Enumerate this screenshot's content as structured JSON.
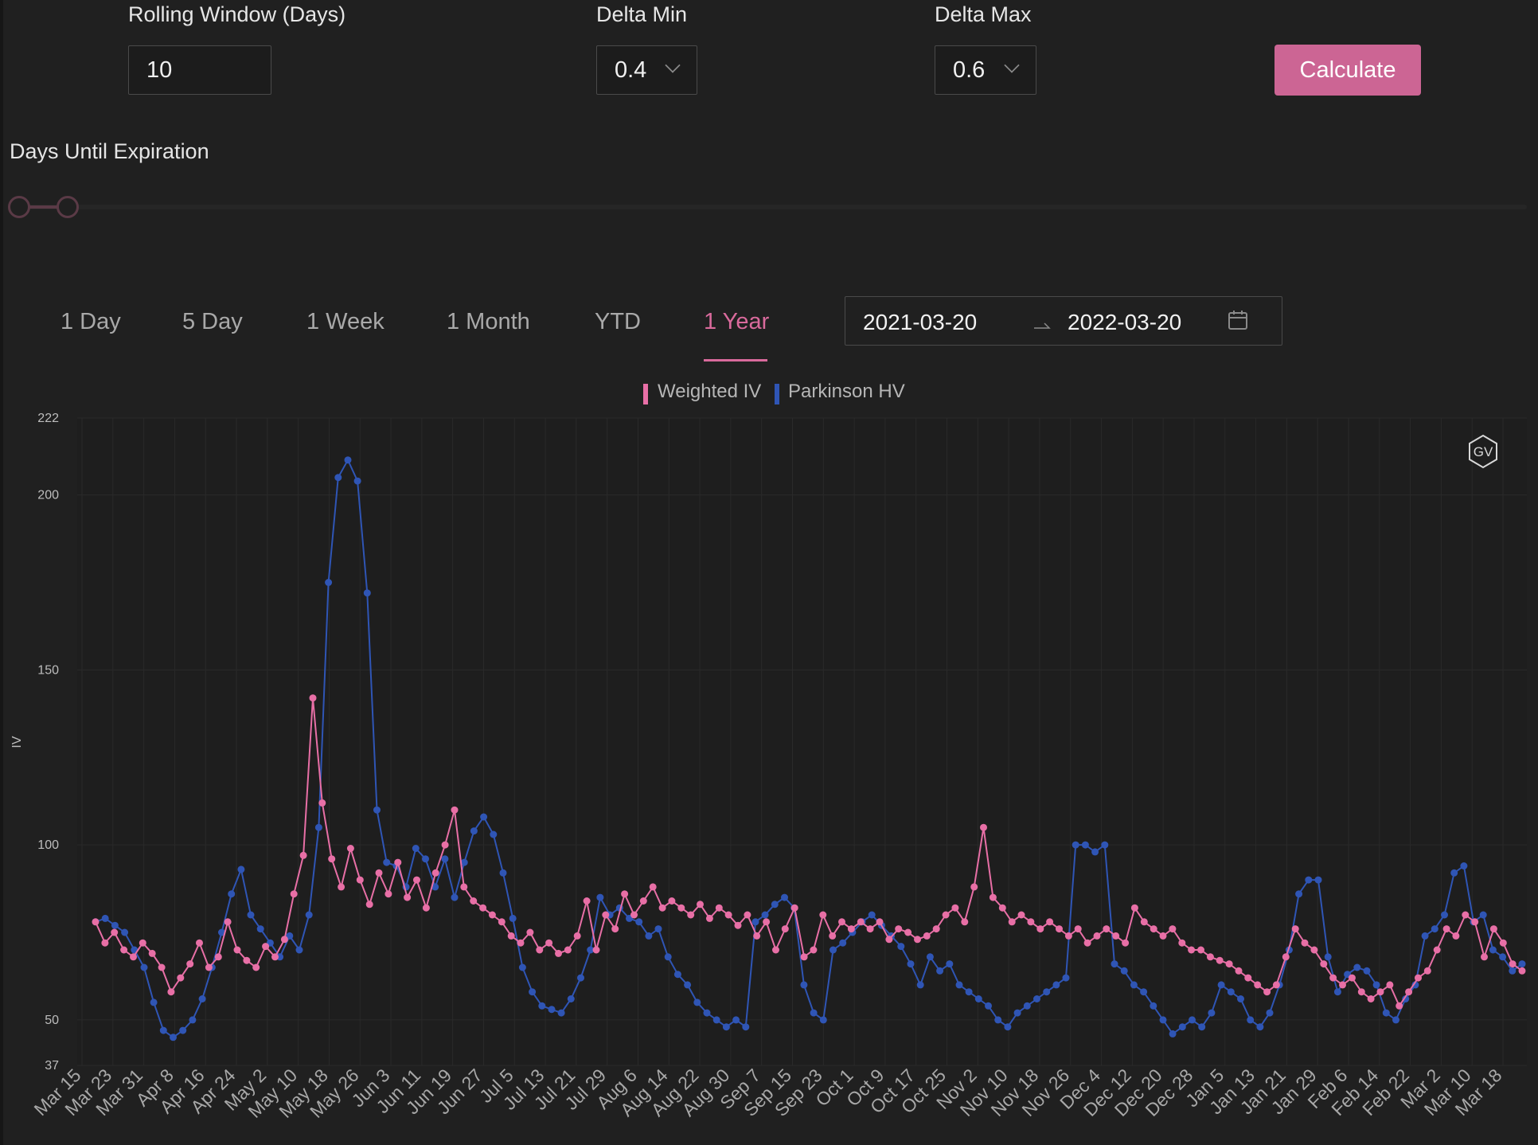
{
  "controls": {
    "rolling_window": {
      "label": "Rolling Window (Days)",
      "value": "10"
    },
    "delta_min": {
      "label": "Delta Min",
      "value": "0.4"
    },
    "delta_max": {
      "label": "Delta Max",
      "value": "0.6"
    },
    "calculate_label": "Calculate",
    "days_until_expiration_label": "Days Until Expiration"
  },
  "range_tabs": [
    {
      "label": "1 Day",
      "active": false
    },
    {
      "label": "5 Day",
      "active": false
    },
    {
      "label": "1 Week",
      "active": false
    },
    {
      "label": "1 Month",
      "active": false
    },
    {
      "label": "YTD",
      "active": false
    },
    {
      "label": "1 Year",
      "active": true
    }
  ],
  "date_range": {
    "start": "2021-03-20",
    "end": "2022-03-20"
  },
  "badge_text": "GV",
  "colors": {
    "accent": "#cc6594",
    "weighted_iv": "#e86fa6",
    "parkinson_hv": "#2f55b5",
    "background": "#202020"
  },
  "chart_data": {
    "type": "line",
    "ylabel": "IV",
    "xlabel": "",
    "ylim": [
      37,
      222
    ],
    "y_ticks": [
      37,
      50,
      100,
      150,
      200,
      222
    ],
    "x_tick_labels": [
      "Mar 15",
      "Mar 23",
      "Mar 31",
      "Apr 8",
      "Apr 16",
      "Apr 24",
      "May 2",
      "May 10",
      "May 18",
      "May 26",
      "Jun 3",
      "Jun 11",
      "Jun 19",
      "Jun 27",
      "Jul 5",
      "Jul 13",
      "Jul 21",
      "Jul 29",
      "Aug 6",
      "Aug 14",
      "Aug 22",
      "Aug 30",
      "Sep 7",
      "Sep 15",
      "Sep 23",
      "Oct 1",
      "Oct 9",
      "Oct 17",
      "Oct 25",
      "Nov 2",
      "Nov 10",
      "Nov 18",
      "Nov 26",
      "Dec 4",
      "Dec 12",
      "Dec 20",
      "Dec 28",
      "Jan 5",
      "Jan 13",
      "Jan 21",
      "Jan 29",
      "Feb 6",
      "Feb 14",
      "Feb 22",
      "Mar 2",
      "Mar 10",
      "Mar 18"
    ],
    "legend_position": "top-center",
    "grid": true,
    "series": [
      {
        "name": "Weighted IV",
        "color": "#e86fa6",
        "values": [
          78,
          72,
          75,
          70,
          68,
          72,
          69,
          65,
          58,
          62,
          66,
          72,
          65,
          68,
          78,
          70,
          67,
          65,
          71,
          68,
          73,
          86,
          97,
          142,
          112,
          96,
          88,
          99,
          90,
          83,
          92,
          86,
          95,
          85,
          90,
          82,
          92,
          100,
          110,
          88,
          84,
          82,
          80,
          78,
          74,
          72,
          75,
          70,
          72,
          69,
          70,
          74,
          84,
          70,
          80,
          76,
          86,
          80,
          84,
          88,
          82,
          84,
          82,
          80,
          83,
          79,
          82,
          80,
          77,
          80,
          74,
          78,
          70,
          76,
          82,
          68,
          70,
          80,
          74,
          78,
          76,
          78,
          76,
          78,
          73,
          76,
          75,
          73,
          74,
          76,
          80,
          82,
          78,
          88,
          105,
          85,
          82,
          78,
          80,
          78,
          76,
          78,
          76,
          74,
          76,
          72,
          74,
          76,
          74,
          72,
          82,
          78,
          76,
          74,
          76,
          72,
          70,
          70,
          68,
          67,
          66,
          64,
          62,
          60,
          58,
          60,
          68,
          76,
          72,
          70,
          66,
          62,
          60,
          62,
          58,
          56,
          58,
          60,
          54,
          58,
          62,
          64,
          70,
          76,
          74,
          80,
          78,
          68,
          76,
          72,
          66,
          64
        ]
      },
      {
        "name": "Parkinson HV",
        "color": "#2f55b5",
        "values": [
          78,
          79,
          77,
          75,
          70,
          65,
          55,
          47,
          45,
          47,
          50,
          56,
          65,
          75,
          86,
          93,
          80,
          76,
          72,
          68,
          74,
          70,
          80,
          105,
          175,
          205,
          210,
          204,
          172,
          110,
          95,
          94,
          88,
          99,
          96,
          88,
          96,
          85,
          95,
          104,
          108,
          103,
          92,
          79,
          65,
          58,
          54,
          53,
          52,
          56,
          62,
          70,
          85,
          80,
          82,
          79,
          78,
          74,
          76,
          68,
          63,
          60,
          55,
          52,
          50,
          48,
          50,
          48,
          78,
          80,
          83,
          85,
          82,
          60,
          52,
          50,
          70,
          72,
          75,
          78,
          80,
          77,
          74,
          71,
          66,
          60,
          68,
          64,
          66,
          60,
          58,
          56,
          54,
          50,
          48,
          52,
          54,
          56,
          58,
          60,
          62,
          100,
          100,
          98,
          100,
          66,
          64,
          60,
          58,
          54,
          50,
          46,
          48,
          50,
          48,
          52,
          60,
          58,
          56,
          50,
          48,
          52,
          60,
          70,
          86,
          90,
          90,
          68,
          58,
          63,
          65,
          64,
          60,
          52,
          50,
          56,
          60,
          74,
          76,
          80,
          92,
          94,
          78,
          80,
          70,
          68,
          64,
          66
        ]
      }
    ]
  }
}
